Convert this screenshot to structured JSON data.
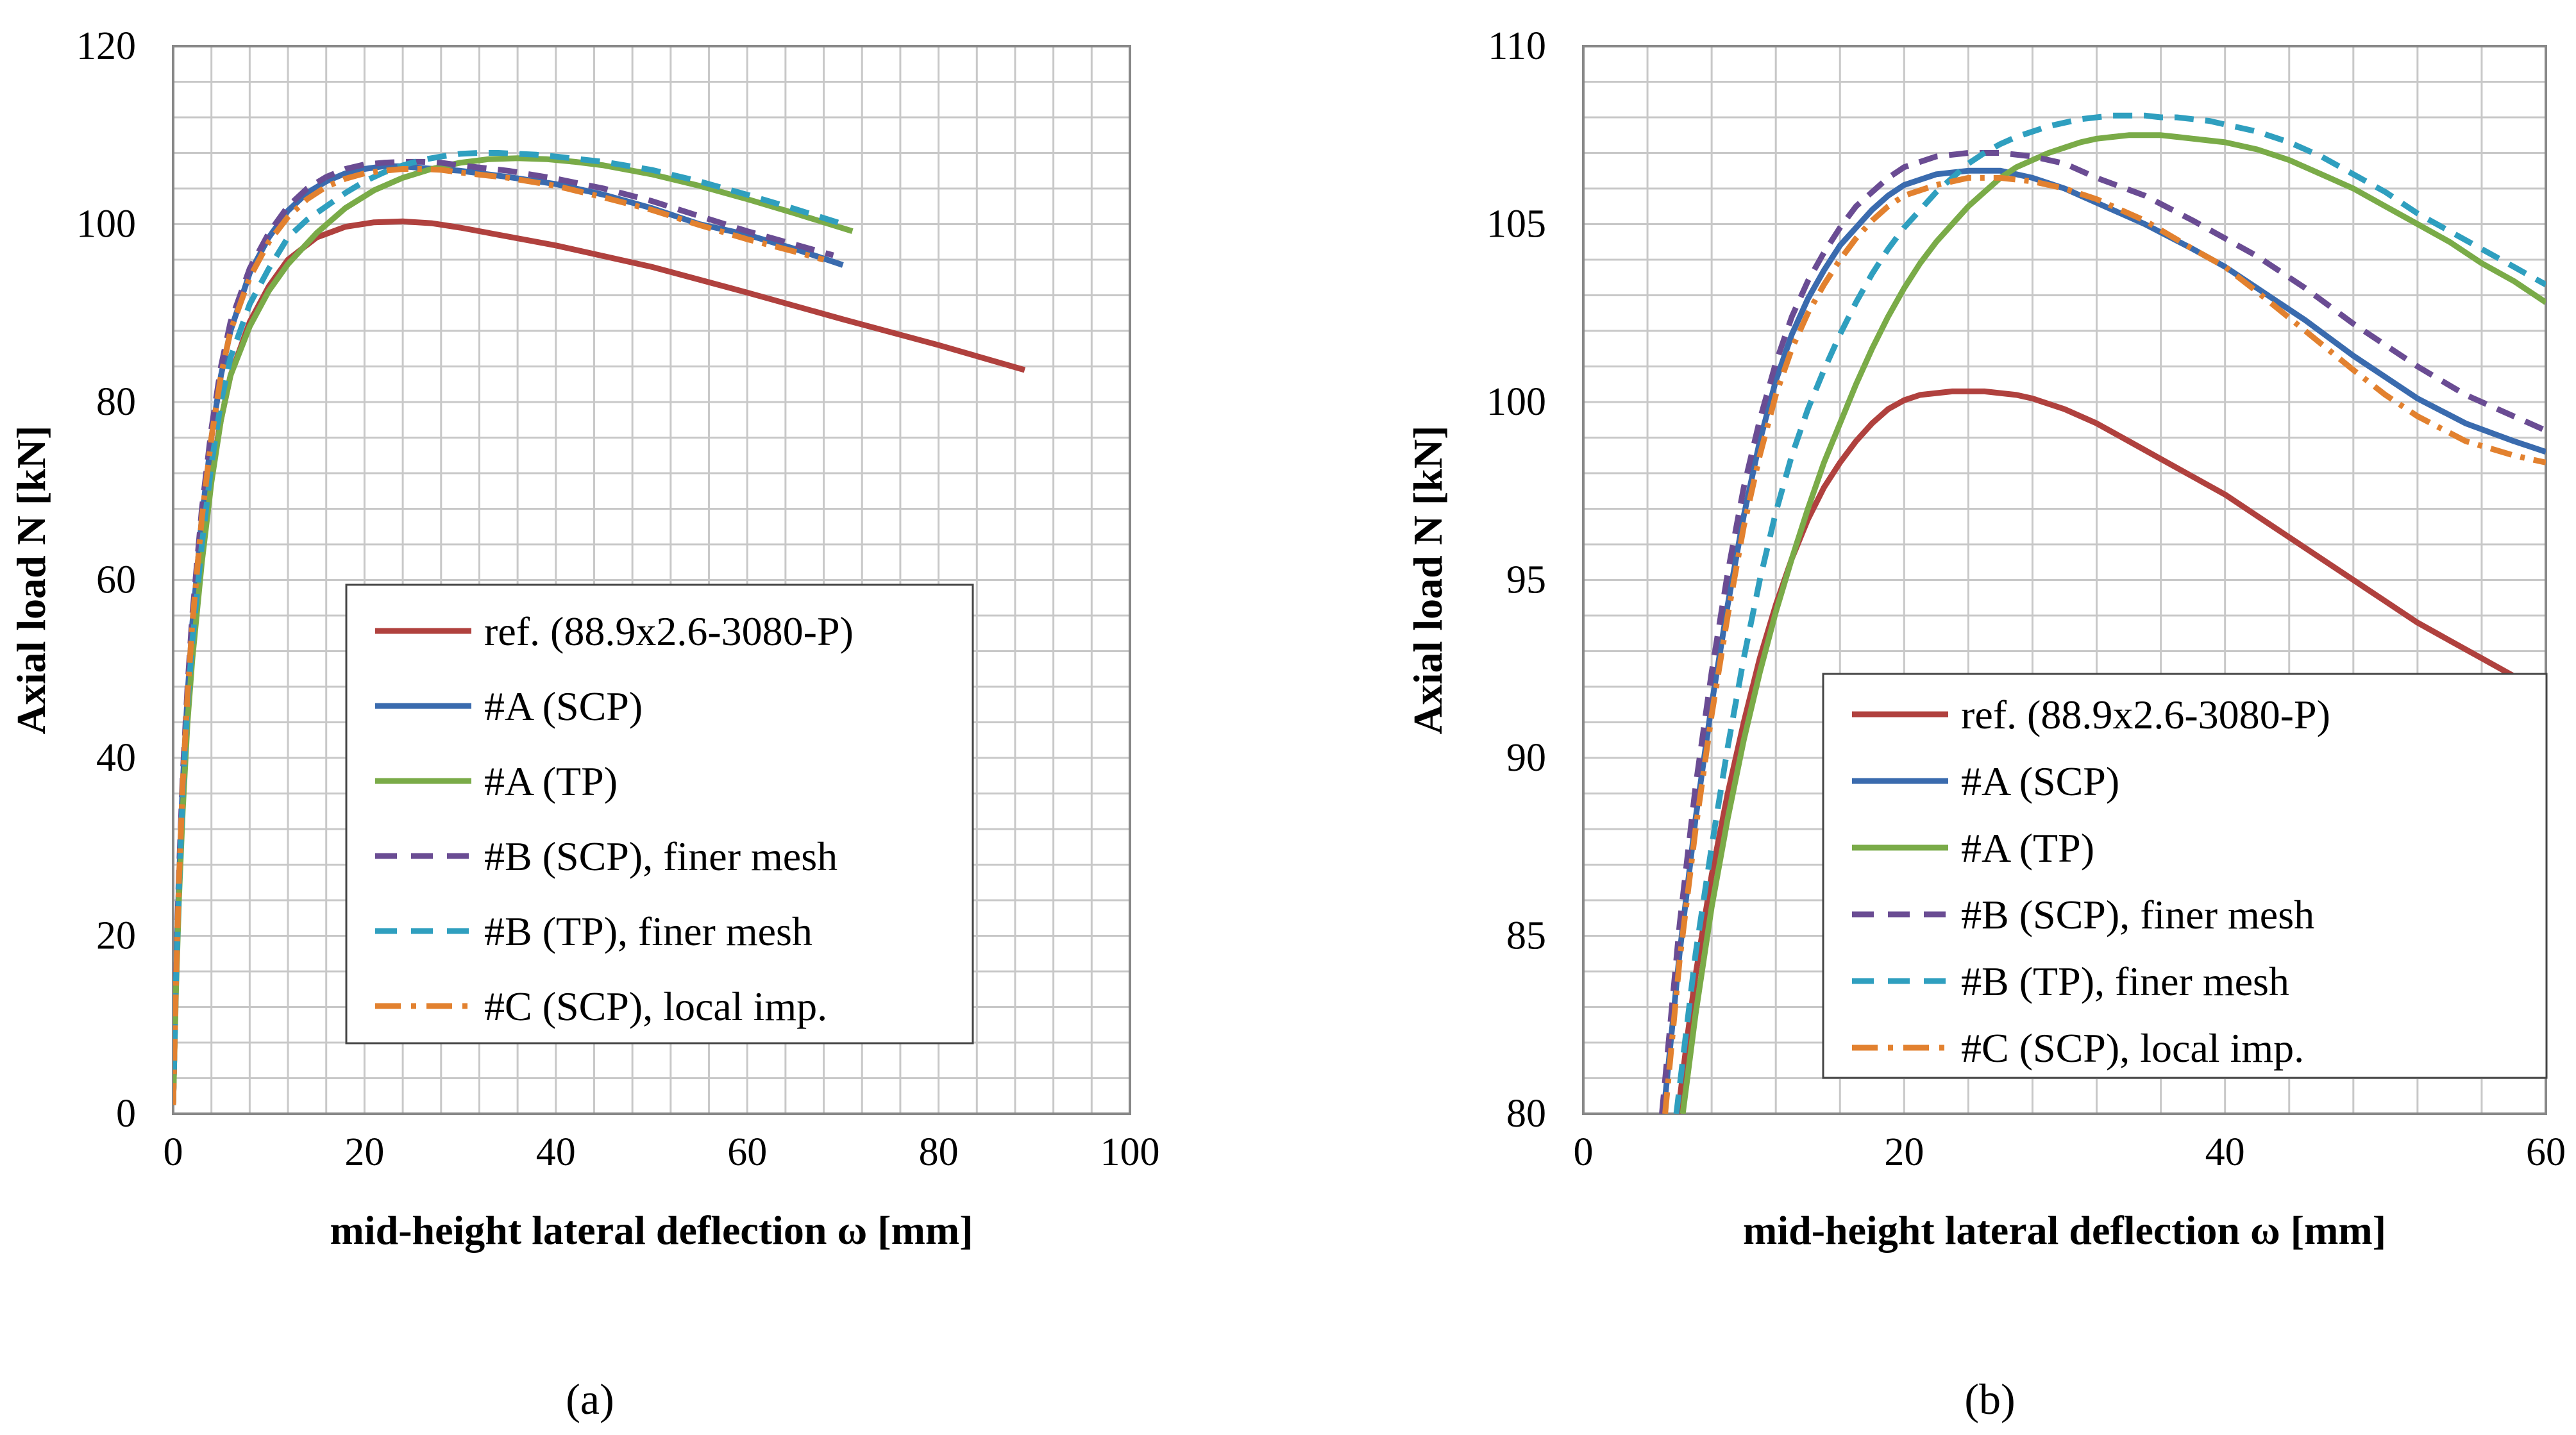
{
  "figure_labels": {
    "a": "(a)",
    "b": "(b)"
  },
  "colors": {
    "ref": "#b0413e",
    "A_SCP": "#3a6bae",
    "A_TP": "#7aab48",
    "B_SCP": "#6a4c93",
    "B_TP": "#2f9fbf",
    "C_SCP": "#e2812f",
    "grid": "#c8c8c8",
    "frame": "#888888"
  },
  "chart_data": [
    {
      "type": "line",
      "panel": "a",
      "title": "",
      "xlabel": "mid-height lateral deflection ω [mm]",
      "ylabel": "Axial load N [kN]",
      "xlim": [
        0,
        100
      ],
      "ylim": [
        0,
        120
      ],
      "xticks": [
        0,
        20,
        40,
        60,
        80,
        100
      ],
      "yticks": [
        0,
        20,
        40,
        60,
        80,
        100,
        120
      ],
      "grid": true,
      "legend_position": "lower-center",
      "series": [
        {
          "key": "ref",
          "name": "ref. (88.9x2.6-3080-P)",
          "style": "solid",
          "x": [
            0,
            0.3,
            0.6,
            1,
            1.5,
            2,
            3,
            4,
            5,
            6,
            8,
            10,
            12,
            15,
            18,
            21,
            24,
            27,
            30,
            40,
            50,
            60,
            70,
            80,
            89
          ],
          "y": [
            1,
            15,
            25,
            35,
            45,
            52,
            63,
            72,
            78,
            83,
            89,
            93,
            96,
            98.5,
            99.7,
            100.2,
            100.3,
            100.1,
            99.6,
            97.6,
            95.2,
            92.3,
            89.3,
            86.4,
            83.6
          ]
        },
        {
          "key": "A_SCP",
          "name": "#A (SCP)",
          "style": "solid",
          "x": [
            0,
            0.3,
            0.6,
            1,
            1.5,
            2,
            3,
            4,
            5,
            6,
            8,
            10,
            12,
            14,
            16,
            18,
            20,
            22,
            24,
            26,
            30,
            35,
            40,
            45,
            50,
            55,
            60,
            65,
            70
          ],
          "y": [
            1,
            15,
            26,
            37,
            47,
            55,
            67,
            76,
            83,
            88,
            94.5,
            98.5,
            101.5,
            103.5,
            104.8,
            105.7,
            106.2,
            106.5,
            106.5,
            106.3,
            106,
            105.3,
            104.5,
            103.3,
            101.8,
            100,
            98.8,
            97.2,
            95.4
          ]
        },
        {
          "key": "A_TP",
          "name": "#A (TP)",
          "style": "solid",
          "x": [
            0,
            0.3,
            0.6,
            1,
            1.5,
            2,
            3,
            4,
            5,
            6,
            8,
            10,
            12,
            15,
            18,
            21,
            24,
            27,
            30,
            33,
            36,
            39,
            42,
            45,
            50,
            55,
            60,
            65,
            71
          ],
          "y": [
            1,
            14,
            24,
            34,
            44,
            51,
            62,
            71,
            78,
            83,
            88.5,
            92.5,
            95.5,
            99,
            101.8,
            103.8,
            105.2,
            106.2,
            106.9,
            107.3,
            107.4,
            107.3,
            107,
            106.6,
            105.6,
            104.3,
            102.8,
            101.2,
            99.2
          ]
        },
        {
          "key": "B_SCP",
          "name": "#B (SCP), finer mesh",
          "style": "dash",
          "x": [
            0,
            0.3,
            0.6,
            1,
            1.5,
            2,
            3,
            4,
            5,
            6,
            8,
            10,
            12,
            14,
            16,
            18,
            20,
            22,
            24,
            26,
            28,
            30,
            35,
            40,
            45,
            50,
            55,
            60,
            65,
            69
          ],
          "y": [
            1,
            16,
            27,
            38,
            48,
            56,
            68,
            77,
            84,
            89,
            95,
            99,
            102,
            104,
            105.3,
            106.2,
            106.7,
            106.9,
            107,
            107,
            106.9,
            106.6,
            106,
            105.1,
            104,
            102.6,
            100.9,
            99.2,
            97.7,
            96.5
          ]
        },
        {
          "key": "B_TP",
          "name": "#B (TP), finer mesh",
          "style": "dash",
          "x": [
            0,
            0.3,
            0.6,
            1,
            1.5,
            2,
            3,
            4,
            5,
            6,
            8,
            10,
            12,
            14,
            16,
            18,
            20,
            22,
            24,
            26,
            28,
            30,
            32,
            34,
            36,
            38,
            40,
            45,
            50,
            55,
            60,
            65,
            70
          ],
          "y": [
            1,
            15,
            25,
            36,
            46,
            53,
            64,
            73,
            80,
            85,
            91,
            95,
            98.5,
            100.5,
            102,
            103.5,
            104.8,
            105.8,
            106.6,
            107.2,
            107.6,
            107.9,
            108,
            108,
            107.9,
            107.8,
            107.6,
            107,
            106.1,
            104.8,
            103.3,
            101.7,
            100
          ]
        },
        {
          "key": "C_SCP",
          "name": "#C (SCP), local imp.",
          "style": "dashdot",
          "x": [
            0,
            0.3,
            0.6,
            1,
            1.5,
            2,
            3,
            4,
            5,
            6,
            8,
            10,
            12,
            14,
            16,
            18,
            20,
            22,
            24,
            26,
            28,
            30,
            35,
            40,
            45,
            50,
            55,
            60,
            65,
            68
          ],
          "y": [
            1,
            15,
            26,
            37,
            47,
            55,
            67,
            76,
            83,
            88,
            94,
            98,
            100.8,
            102.8,
            104.2,
            105.1,
            105.7,
            106,
            106.2,
            106.2,
            106.1,
            105.8,
            105.2,
            104.3,
            103,
            101.6,
            99.9,
            98.3,
            96.9,
            96
          ]
        }
      ]
    },
    {
      "type": "line",
      "panel": "b",
      "title": "",
      "xlabel": "mid-height lateral deflection ω [mm]",
      "ylabel": "Axial load N [kN]",
      "xlim": [
        0,
        60
      ],
      "ylim": [
        80,
        110
      ],
      "xticks": [
        0,
        20,
        40,
        60
      ],
      "yticks": [
        80,
        85,
        90,
        95,
        100,
        105,
        110
      ],
      "grid": true,
      "legend_position": "lower-right",
      "series": [
        {
          "key": "ref",
          "name": "ref. (88.9x2.6-3080-P)",
          "style": "solid",
          "x": [
            5.9,
            6.5,
            7,
            8,
            9,
            10,
            11,
            12,
            13,
            14,
            15,
            16,
            17,
            18,
            19,
            20,
            21,
            22,
            23,
            24,
            25,
            26,
            27,
            28,
            30,
            32,
            34,
            36,
            38,
            40,
            42,
            44,
            46,
            48,
            50,
            52,
            54,
            56,
            58,
            60
          ],
          "y": [
            80,
            82.2,
            83.9,
            86.7,
            89,
            91,
            92.8,
            94.3,
            95.6,
            96.7,
            97.6,
            98.3,
            98.9,
            99.4,
            99.8,
            100.05,
            100.2,
            100.25,
            100.3,
            100.3,
            100.3,
            100.25,
            100.2,
            100.1,
            99.8,
            99.4,
            98.9,
            98.4,
            97.9,
            97.4,
            96.8,
            96.2,
            95.6,
            95,
            94.4,
            93.8,
            93.3,
            92.8,
            92.3,
            91.8
          ]
        },
        {
          "key": "A_SCP",
          "name": "#A (SCP)",
          "style": "solid",
          "x": [
            5,
            6,
            7,
            8,
            9,
            10,
            11,
            12,
            13,
            14,
            15,
            16,
            17,
            18,
            19,
            20,
            22,
            24,
            26,
            28,
            30,
            32,
            35,
            38,
            40,
            42,
            45,
            48,
            50,
            52,
            55,
            58,
            60
          ],
          "y": [
            80,
            84.5,
            88.3,
            91.5,
            94.3,
            96.8,
            98.9,
            100.6,
            101.9,
            102.9,
            103.7,
            104.4,
            104.9,
            105.4,
            105.8,
            106.1,
            106.4,
            106.5,
            106.5,
            106.3,
            106,
            105.6,
            105,
            104.3,
            103.8,
            103.2,
            102.3,
            101.3,
            100.7,
            100.1,
            99.4,
            98.9,
            98.6
          ]
        },
        {
          "key": "A_TP",
          "name": "#A (TP)",
          "style": "solid",
          "x": [
            6.2,
            7,
            8,
            9,
            10,
            11,
            12,
            13,
            14,
            15,
            16,
            17,
            18,
            19,
            20,
            21,
            22,
            23,
            24,
            25,
            26,
            27,
            28,
            29,
            30,
            31,
            32,
            33,
            34,
            35,
            36,
            37,
            38,
            39,
            40,
            42,
            44,
            46,
            48,
            50,
            52,
            54,
            56,
            58,
            60
          ],
          "y": [
            80,
            82.8,
            85.8,
            88.3,
            90.5,
            92.4,
            94.1,
            95.6,
            97,
            98.3,
            99.4,
            100.5,
            101.5,
            102.4,
            103.2,
            103.9,
            104.5,
            105,
            105.5,
            105.9,
            106.3,
            106.6,
            106.8,
            107,
            107.15,
            107.3,
            107.4,
            107.45,
            107.5,
            107.5,
            107.5,
            107.45,
            107.4,
            107.35,
            107.3,
            107.1,
            106.8,
            106.4,
            106,
            105.5,
            105,
            104.5,
            103.9,
            103.4,
            102.8
          ]
        },
        {
          "key": "B_SCP",
          "name": "#B (SCP), finer mesh",
          "style": "dash",
          "x": [
            4.9,
            6,
            7,
            8,
            9,
            10,
            11,
            12,
            13,
            14,
            15,
            16,
            17,
            18,
            19,
            20,
            22,
            24,
            26,
            28,
            30,
            32,
            35,
            38,
            40,
            42,
            45,
            48,
            50,
            52,
            55,
            58,
            60
          ],
          "y": [
            80,
            85.3,
            89.2,
            92.4,
            95.2,
            97.6,
            99.5,
            101.1,
            102.4,
            103.4,
            104.2,
            104.9,
            105.5,
            105.9,
            106.3,
            106.6,
            106.9,
            107,
            107,
            106.9,
            106.7,
            106.3,
            105.8,
            105.1,
            104.6,
            104.1,
            103.2,
            102.2,
            101.6,
            101,
            100.2,
            99.6,
            99.2
          ]
        },
        {
          "key": "B_TP",
          "name": "#B (TP), finer mesh",
          "style": "dash",
          "x": [
            5.8,
            7,
            8,
            9,
            10,
            11,
            12,
            13,
            14,
            15,
            16,
            17,
            18,
            19,
            20,
            21,
            22,
            23,
            24,
            25,
            26,
            27,
            28,
            29,
            30,
            31,
            32,
            33,
            34,
            35,
            36,
            37,
            38,
            39,
            40,
            42,
            44,
            46,
            48,
            50,
            52,
            54,
            56,
            58,
            60
          ],
          "y": [
            80,
            84.5,
            87.5,
            90.3,
            92.8,
            95,
            96.9,
            98.5,
            99.8,
            100.9,
            101.9,
            102.8,
            103.6,
            104.3,
            104.9,
            105.4,
            105.9,
            106.3,
            106.7,
            107,
            107.25,
            107.45,
            107.6,
            107.75,
            107.85,
            107.95,
            108,
            108.05,
            108.05,
            108.05,
            108,
            108,
            107.95,
            107.9,
            107.8,
            107.6,
            107.3,
            106.9,
            106.4,
            105.9,
            105.3,
            104.8,
            104.3,
            103.8,
            103.3
          ]
        },
        {
          "key": "C_SCP",
          "name": "#C (SCP), local imp.",
          "style": "dashdot",
          "x": [
            5.1,
            6,
            7,
            8,
            9,
            10,
            11,
            12,
            13,
            14,
            15,
            16,
            17,
            18,
            19,
            20,
            22,
            24,
            26,
            28,
            30,
            32,
            35,
            38,
            40,
            42,
            45,
            48,
            50,
            52,
            55,
            58,
            60
          ],
          "y": [
            80,
            84.3,
            88,
            91.2,
            94,
            96.5,
            98.5,
            100.2,
            101.5,
            102.5,
            103.3,
            104,
            104.6,
            105.1,
            105.5,
            105.8,
            106.1,
            106.3,
            106.3,
            106.2,
            106,
            105.7,
            105.1,
            104.3,
            103.8,
            103.1,
            102,
            100.9,
            100.2,
            99.6,
            98.9,
            98.5,
            98.3
          ]
        }
      ]
    }
  ]
}
